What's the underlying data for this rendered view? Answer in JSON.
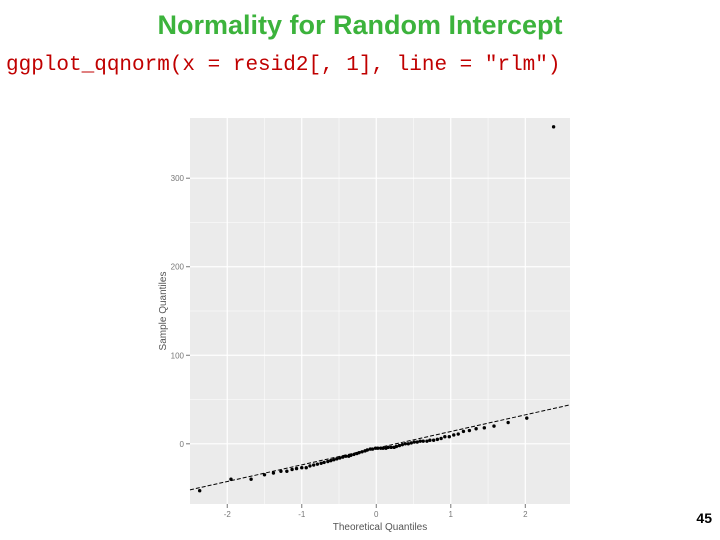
{
  "slide": {
    "title": "Normality for Random Intercept",
    "code": "ggplot_qqnorm(x = resid2[, 1], line = \"rlm\")",
    "page_number": "45"
  },
  "colors": {
    "title": "#3cb33c",
    "code": "#c00000",
    "panel_background": "#ebebeb",
    "gridline": "#ffffff",
    "points": "#000000",
    "reference_line": "#000000"
  },
  "chart_data": {
    "type": "scatter",
    "xlabel": "Theoretical Quantiles",
    "ylabel": "Sample Quantiles",
    "xlim": [
      -2.5,
      2.6
    ],
    "ylim": [
      -68,
      368
    ],
    "x_ticks": [
      {
        "value": -2,
        "label": "-2"
      },
      {
        "value": -1,
        "label": "-1"
      },
      {
        "value": 0,
        "label": "0"
      },
      {
        "value": 1,
        "label": "1"
      },
      {
        "value": 2,
        "label": "2"
      }
    ],
    "y_ticks": [
      {
        "value": 0,
        "label": "0"
      },
      {
        "value": 100,
        "label": "100"
      },
      {
        "value": 200,
        "label": "200"
      },
      {
        "value": 300,
        "label": "300"
      }
    ],
    "grid": true,
    "reference_line": {
      "type": "rlm",
      "x": [
        -2.5,
        2.6
      ],
      "y": [
        -52,
        44
      ]
    },
    "series": [
      {
        "points": [
          [
            -2.37,
            -53
          ],
          [
            -1.95,
            -40
          ],
          [
            -1.68,
            -40
          ],
          [
            -1.5,
            -35
          ],
          [
            -1.38,
            -33
          ],
          [
            -1.28,
            -31
          ],
          [
            -1.2,
            -31
          ],
          [
            -1.13,
            -29
          ],
          [
            -1.07,
            -28
          ],
          [
            -1.0,
            -27
          ],
          [
            -0.94,
            -27
          ],
          [
            -0.89,
            -25
          ],
          [
            -0.84,
            -24
          ],
          [
            -0.79,
            -23
          ],
          [
            -0.74,
            -22
          ],
          [
            -0.7,
            -21
          ],
          [
            -0.65,
            -20
          ],
          [
            -0.61,
            -19
          ],
          [
            -0.57,
            -18
          ],
          [
            -0.53,
            -17
          ],
          [
            -0.49,
            -16
          ],
          [
            -0.45,
            -15
          ],
          [
            -0.41,
            -14
          ],
          [
            -0.37,
            -14
          ],
          [
            -0.34,
            -13
          ],
          [
            -0.3,
            -12
          ],
          [
            -0.26,
            -11
          ],
          [
            -0.23,
            -10
          ],
          [
            -0.19,
            -9
          ],
          [
            -0.15,
            -8
          ],
          [
            -0.12,
            -7
          ],
          [
            -0.08,
            -6
          ],
          [
            -0.05,
            -6
          ],
          [
            -0.01,
            -5
          ],
          [
            0.02,
            -5
          ],
          [
            0.06,
            -5
          ],
          [
            0.09,
            -5
          ],
          [
            0.13,
            -5
          ],
          [
            0.16,
            -4
          ],
          [
            0.2,
            -4
          ],
          [
            0.24,
            -4
          ],
          [
            0.27,
            -3
          ],
          [
            0.31,
            -2
          ],
          [
            0.35,
            -1
          ],
          [
            0.39,
            0
          ],
          [
            0.43,
            0
          ],
          [
            0.47,
            1
          ],
          [
            0.51,
            2
          ],
          [
            0.55,
            2
          ],
          [
            0.59,
            3
          ],
          [
            0.63,
            3
          ],
          [
            0.68,
            3
          ],
          [
            0.72,
            4
          ],
          [
            0.77,
            4
          ],
          [
            0.82,
            5
          ],
          [
            0.87,
            6
          ],
          [
            0.92,
            8
          ],
          [
            0.98,
            8
          ],
          [
            1.04,
            10
          ],
          [
            1.1,
            11
          ],
          [
            1.17,
            14
          ],
          [
            1.25,
            15
          ],
          [
            1.34,
            17
          ],
          [
            1.45,
            18
          ],
          [
            1.58,
            20
          ],
          [
            1.77,
            24
          ],
          [
            2.02,
            29
          ],
          [
            2.38,
            358
          ]
        ]
      }
    ]
  }
}
